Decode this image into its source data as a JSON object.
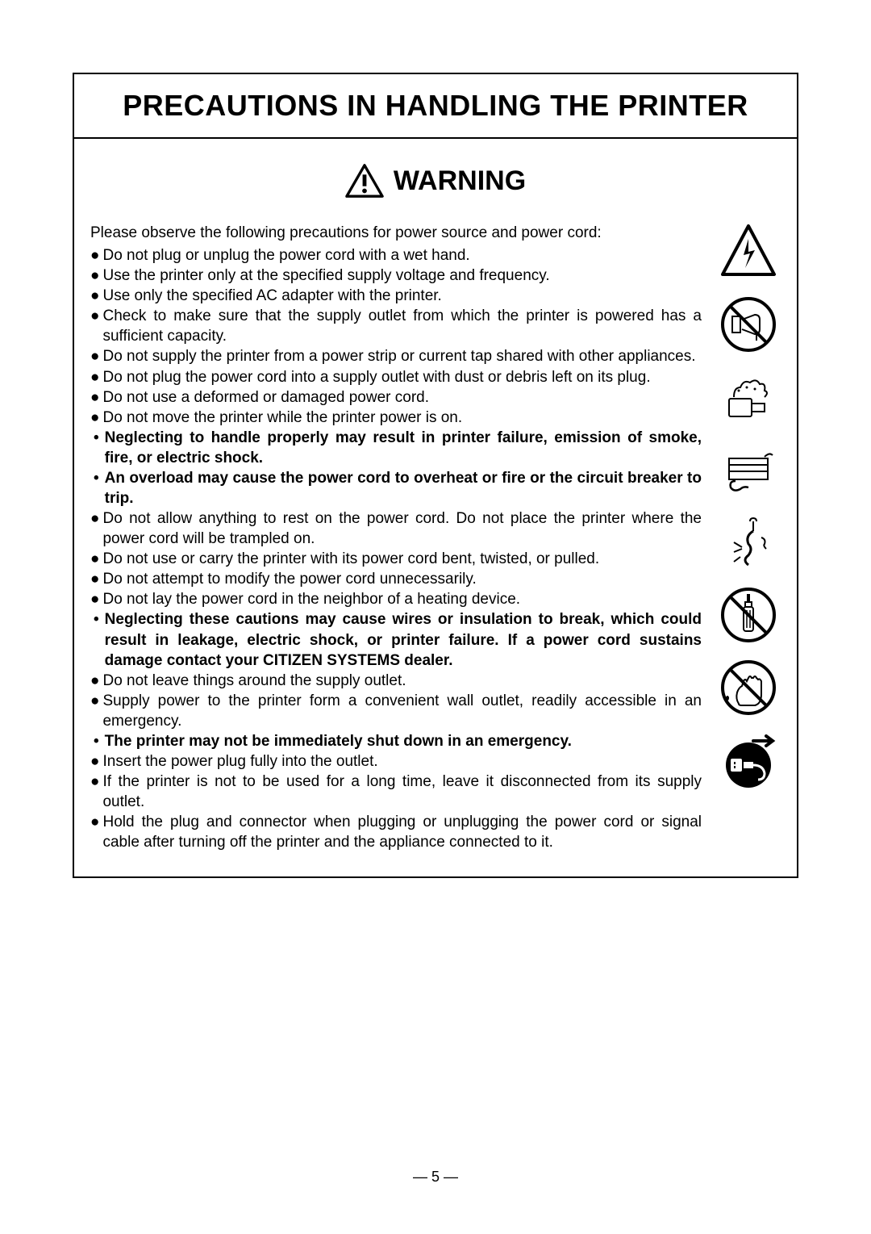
{
  "title": "PRECAUTIONS IN HANDLING THE PRINTER",
  "warning_label": "WARNING",
  "intro": "Please observe the following precautions for power source and power cord:",
  "items": [
    {
      "type": "bullet",
      "text": "Do not plug or unplug the power cord with a wet hand."
    },
    {
      "type": "bullet",
      "text": "Use the printer only at the specified supply voltage and frequency."
    },
    {
      "type": "bullet",
      "text": "Use only the specified AC adapter with the printer."
    },
    {
      "type": "bullet",
      "text": "Check to make sure that the supply outlet from which the printer is powered has a sufficient capacity."
    },
    {
      "type": "bullet",
      "text": "Do not supply the printer from a power strip or current tap shared with other appliances."
    },
    {
      "type": "bullet",
      "text": "Do not plug the power cord into a supply outlet with dust or debris left on its plug."
    },
    {
      "type": "bullet",
      "text": "Do not use a deformed or damaged power cord."
    },
    {
      "type": "bullet",
      "text": "Do not move the printer while the printer power is on."
    },
    {
      "type": "sub",
      "text": "Neglecting to handle properly may result in printer failure, emission of smoke, fire, or electric shock."
    },
    {
      "type": "sub",
      "text": "An overload may cause the power cord to overheat or fire or the circuit breaker to trip."
    },
    {
      "type": "bullet",
      "text": "Do not allow anything to rest on the power cord.  Do not place the printer where the power cord will be trampled on."
    },
    {
      "type": "bullet",
      "text": "Do not use or carry the printer with its power cord bent, twisted, or pulled."
    },
    {
      "type": "bullet",
      "text": "Do not attempt to modify the power cord unnecessarily."
    },
    {
      "type": "bullet",
      "text": "Do not lay the power cord in the neighbor of a heating device."
    },
    {
      "type": "sub",
      "text": "Neglecting these cautions may cause wires or insulation to break, which could result in leakage, electric shock, or printer failure.  If a power cord sustains damage contact your CITIZEN SYSTEMS dealer."
    },
    {
      "type": "bullet",
      "text": "Do not leave things around the supply outlet."
    },
    {
      "type": "bullet",
      "text": "Supply power to the printer form a convenient wall outlet, readily accessible in an emergency."
    },
    {
      "type": "sub",
      "text": "The printer may not be immediately shut down in an emergency."
    },
    {
      "type": "bullet",
      "text": "Insert the power plug fully into the outlet."
    },
    {
      "type": "bullet",
      "text": "If the printer is not to be used for a long time, leave it disconnected from its supply outlet."
    },
    {
      "type": "bullet",
      "text": "Hold the plug and connector when plugging or unplugging the power cord or signal cable after turning off the printer and the appliance connected to it."
    }
  ],
  "page_number": "— 5 —",
  "colors": {
    "text": "#000000",
    "background": "#ffffff",
    "border": "#000000"
  }
}
